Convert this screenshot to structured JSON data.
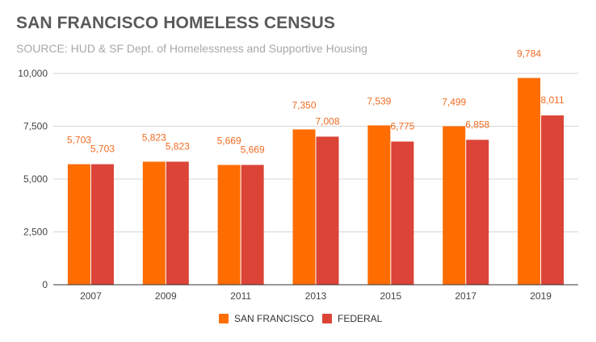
{
  "chart_data": {
    "type": "bar",
    "title": "SAN FRANCISCO HOMELESS CENSUS",
    "subtitle": "SOURCE: HUD & SF Dept. of Homelessness and Supportive Housing",
    "xlabel": "",
    "ylabel": "",
    "categories": [
      "2007",
      "2009",
      "2011",
      "2013",
      "2015",
      "2017",
      "2019"
    ],
    "series": [
      {
        "name": "SAN FRANCISCO",
        "color": "#ff6d01",
        "values": [
          5703,
          5823,
          5669,
          7350,
          7539,
          7499,
          9784
        ],
        "labels": [
          "5,703",
          "5,823",
          "5,669",
          "7,350",
          "7,539",
          "7,499",
          "9,784"
        ]
      },
      {
        "name": "FEDERAL",
        "color": "#db4437",
        "values": [
          5703,
          5823,
          5669,
          7008,
          6775,
          6858,
          8011
        ],
        "labels": [
          "5,703",
          "5,823",
          "5,669",
          "7,008",
          "6,775",
          "6,858",
          "8,011"
        ]
      }
    ],
    "ylim": [
      0,
      10000
    ],
    "yticks": [
      0,
      2500,
      5000,
      7500,
      10000
    ],
    "ytick_labels": [
      "0",
      "2,500",
      "5,000",
      "7,500",
      "10,000"
    ],
    "grid": true,
    "legend_position": "bottom-center",
    "label_color": "#f26b22",
    "axis_text_color": "#444444"
  }
}
